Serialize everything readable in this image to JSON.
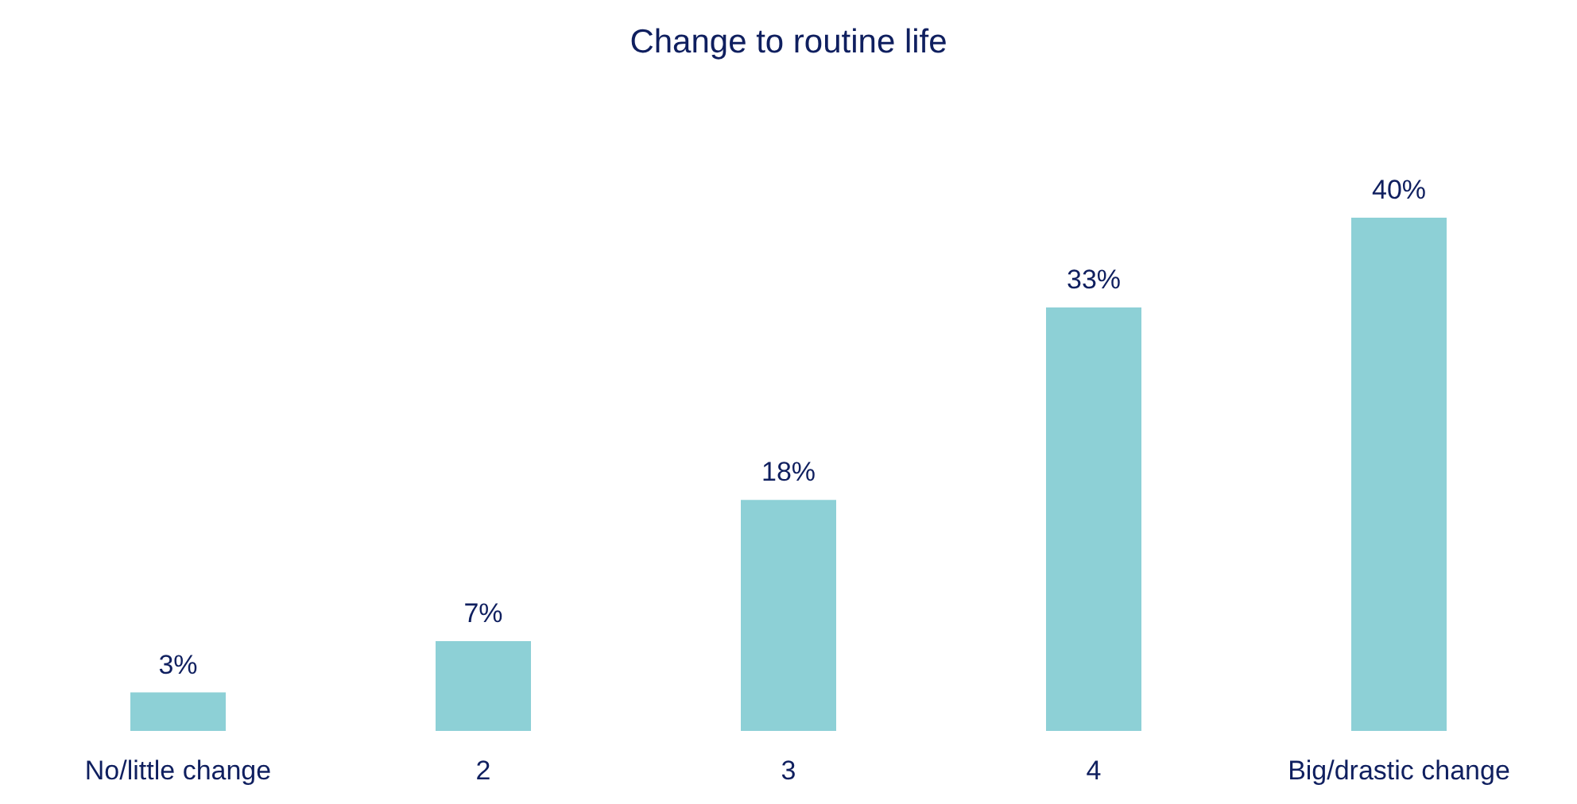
{
  "chart_data": {
    "type": "bar",
    "title": "Change to routine life",
    "categories": [
      "No/little change",
      "2",
      "3",
      "4",
      "Big/drastic change"
    ],
    "values": [
      3,
      7,
      18,
      33,
      40
    ],
    "color": "#8dd0d6",
    "value_labels": [
      "3%",
      "7%",
      "18%",
      "33%",
      "40%"
    ]
  }
}
